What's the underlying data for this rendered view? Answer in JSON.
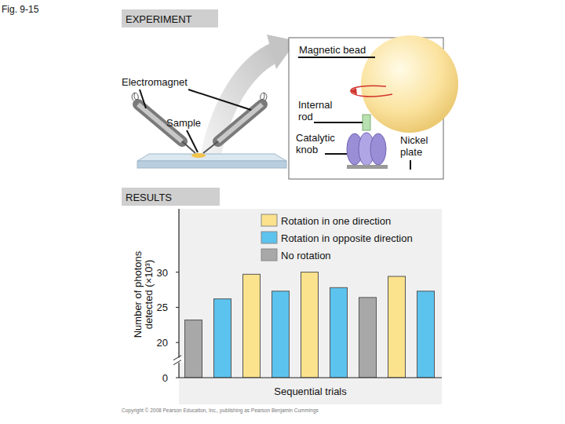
{
  "figure": {
    "label": "Fig. 9-15",
    "experiment_heading": "EXPERIMENT",
    "results_heading": "RESULTS",
    "copyright": "Copyright © 2008 Pearson Education, Inc., publishing as Pearson Benjamin Cummings",
    "diagram": {
      "magnetic_bead": "Magnetic bead",
      "electromagnet": "Electromagnet",
      "sample": "Sample",
      "internal_rod": [
        "Internal",
        "rod"
      ],
      "catalytic_knob": [
        "Catalytic",
        "knob"
      ],
      "nickel_plate": [
        "Nickel",
        "plate"
      ]
    }
  },
  "chart_data": {
    "type": "bar",
    "categories": [
      null,
      null,
      null,
      null,
      null,
      null,
      null,
      null,
      null
    ],
    "xlabel": "Sequential trials",
    "ylabel": [
      "Number of photons",
      "detected (×10³)"
    ],
    "ylim": [
      0,
      39
    ],
    "yticks": [
      0,
      20,
      25,
      30
    ],
    "grid": false,
    "legend": "top-right",
    "series": [
      {
        "name": "Rotation in one direction",
        "color": "#fbe28c",
        "values": [
          null,
          null,
          29.7,
          null,
          30.0,
          null,
          null,
          29.4,
          null
        ]
      },
      {
        "name": "Rotation in opposite direction",
        "color": "#5cc3ee",
        "values": [
          null,
          26.2,
          null,
          27.3,
          null,
          27.8,
          null,
          null,
          27.3
        ]
      },
      {
        "name": "No rotation",
        "color": "#a8a8a8",
        "values": [
          23.2,
          null,
          null,
          null,
          null,
          null,
          26.4,
          null,
          null
        ]
      }
    ]
  }
}
